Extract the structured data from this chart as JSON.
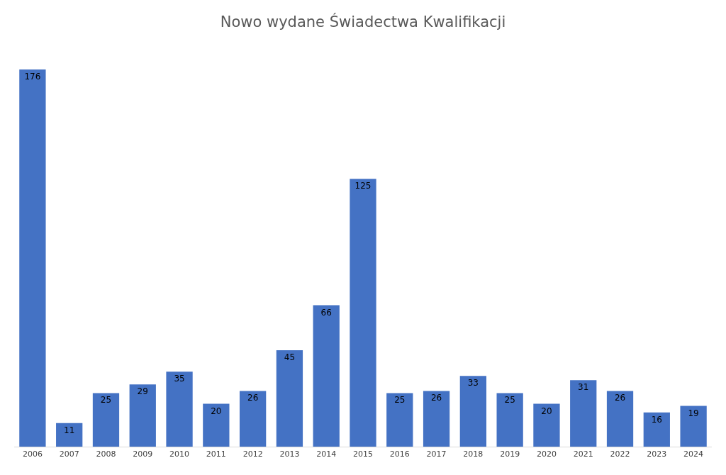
{
  "chart_data": {
    "type": "bar",
    "title": "Nowo wydane Świadectwa Kwalifikacji",
    "categories": [
      "2006",
      "2007",
      "2008",
      "2009",
      "2010",
      "2011",
      "2012",
      "2013",
      "2014",
      "2015",
      "2016",
      "2017",
      "2018",
      "2019",
      "2020",
      "2021",
      "2022",
      "2023",
      "2024"
    ],
    "values": [
      176,
      11,
      25,
      29,
      35,
      20,
      26,
      45,
      66,
      125,
      25,
      26,
      33,
      25,
      20,
      31,
      26,
      16,
      19
    ],
    "color": "#4472c4",
    "data_labels": true,
    "tick_labels": "x"
  }
}
